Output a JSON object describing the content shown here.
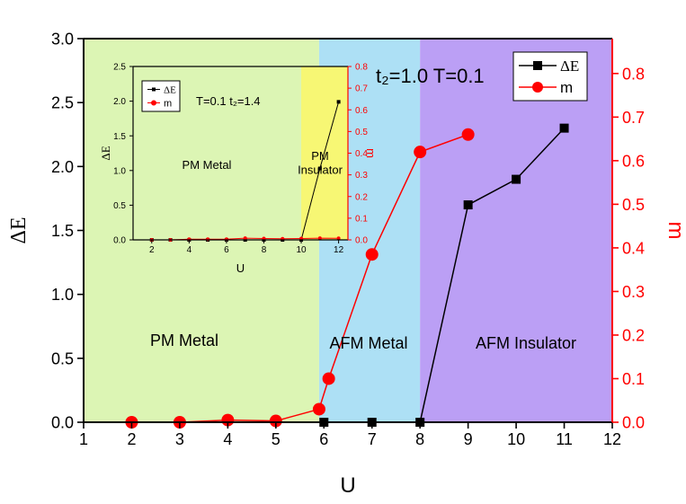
{
  "chart_data": [
    {
      "type": "line",
      "xlabel": "U",
      "ylabel": "ΔE",
      "y2label": "m",
      "xlim": [
        1,
        12
      ],
      "ylim": [
        0,
        3.0
      ],
      "y2lim": [
        0,
        0.88
      ],
      "xticks": [
        1,
        2,
        3,
        4,
        5,
        6,
        7,
        8,
        9,
        10,
        11,
        12
      ],
      "yticks": [
        "0.0",
        "0.5",
        "1.0",
        "1.5",
        "2.0",
        "2.5",
        "3.0"
      ],
      "y2ticks": [
        "0.0",
        "0.1",
        "0.2",
        "0.3",
        "0.4",
        "0.5",
        "0.6",
        "0.7",
        "0.8"
      ],
      "annotation": "t₂=1.0  T=0.1",
      "regions": [
        {
          "label": "PM Metal",
          "x_from": 1,
          "x_to": 5.9,
          "color": "#dcf5b4"
        },
        {
          "label": "AFM Metal",
          "x_from": 5.9,
          "x_to": 8.0,
          "color": "#ade0f5"
        },
        {
          "label": "AFM Insulator",
          "x_from": 8.0,
          "x_to": 12,
          "color": "#bb9ff5"
        }
      ],
      "series": [
        {
          "name": "ΔE",
          "axis": "left",
          "color": "#000000",
          "marker": "square",
          "x": [
            6,
            7,
            8,
            9,
            10,
            11
          ],
          "y": [
            0.0,
            0.0,
            0.0,
            1.7,
            1.9,
            2.3
          ]
        },
        {
          "name": "m",
          "axis": "right",
          "color": "#ff0000",
          "marker": "circle",
          "x": [
            2,
            3,
            4,
            5,
            5.9,
            6.1,
            7,
            8,
            9
          ],
          "y": [
            0.0,
            0.0,
            0.005,
            0.003,
            0.03,
            0.1,
            0.385,
            0.62,
            0.66
          ]
        }
      ],
      "legend": {
        "placement": "top-right",
        "entries": [
          "ΔE",
          "m"
        ]
      }
    },
    {
      "type": "line",
      "inset": true,
      "xlabel": "U",
      "ylabel": "ΔE",
      "y2label": "m",
      "xlim": [
        1,
        12.5
      ],
      "ylim": [
        0,
        2.5
      ],
      "y2lim": [
        0,
        0.8
      ],
      "xticks": [
        2,
        4,
        6,
        8,
        10,
        12
      ],
      "yticks": [
        "0.0",
        "0.5",
        "1.0",
        "1.5",
        "2.0",
        "2.5"
      ],
      "y2ticks": [
        "0.0",
        "0.1",
        "0.2",
        "0.3",
        "0.4",
        "0.5",
        "0.6",
        "0.7",
        "0.8"
      ],
      "annotation": "T=0.1  t₂=1.4",
      "regions": [
        {
          "label": "PM Metal",
          "x_from": 1,
          "x_to": 10,
          "color": "#dcf5b4"
        },
        {
          "label": "PM\nInsulator",
          "x_from": 10,
          "x_to": 12.5,
          "color": "#f7f774"
        }
      ],
      "series": [
        {
          "name": "ΔE",
          "axis": "left",
          "color": "#000000",
          "marker": "square",
          "x": [
            2,
            3,
            4,
            5,
            6,
            7,
            8,
            9,
            10,
            11,
            12
          ],
          "y": [
            0,
            0,
            0,
            0,
            0,
            0,
            0,
            0,
            0,
            1.03,
            1.99
          ]
        },
        {
          "name": "m",
          "axis": "right",
          "color": "#ff0000",
          "marker": "circle",
          "x": [
            2,
            3,
            4,
            5,
            6,
            7,
            8,
            9,
            10,
            11,
            12
          ],
          "y": [
            0.0,
            0.0,
            0.003,
            0.003,
            0.003,
            0.008,
            0.006,
            0.005,
            0.006,
            0.008,
            0.007
          ]
        }
      ],
      "legend": {
        "placement": "top-left",
        "entries": [
          "ΔE",
          "m"
        ]
      }
    }
  ]
}
